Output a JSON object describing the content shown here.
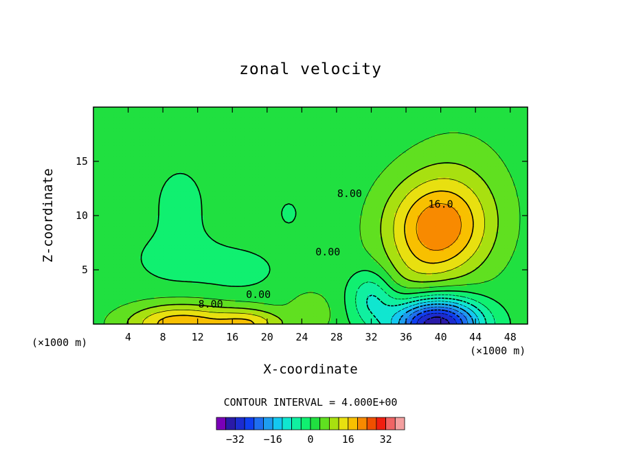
{
  "chart_data": {
    "type": "heatmap",
    "title": "zonal velocity",
    "xlabel": "X-coordinate",
    "ylabel": "Z-coordinate",
    "x_unit_label": "(×1000 m)",
    "x_unit_label_right": "(×1000 m)",
    "xlim": [
      0,
      50
    ],
    "ylim": [
      0,
      20
    ],
    "x_ticks": [
      4,
      8,
      12,
      16,
      20,
      24,
      28,
      32,
      36,
      40,
      44,
      48
    ],
    "y_ticks": [
      5,
      10,
      15
    ],
    "contour_interval_label": "CONTOUR INTERVAL = 4.000E+00",
    "contour_labels": [
      {
        "text": "16.0",
        "x": 40,
        "y": 11
      },
      {
        "text": "8.00",
        "x": 29.5,
        "y": 12
      },
      {
        "text": "0.00",
        "x": 27,
        "y": 6.6
      },
      {
        "text": "0.00",
        "x": 19,
        "y": 2.7
      },
      {
        "text": "8.00",
        "x": 13.5,
        "y": 1.8
      }
    ],
    "colorbar": {
      "levels": [
        -36,
        -32,
        -28,
        -24,
        -20,
        -16,
        -12,
        -8,
        -4,
        0,
        4,
        8,
        12,
        16,
        20,
        24,
        28,
        32,
        36
      ],
      "colors": [
        "#7a00b8",
        "#2a1aa8",
        "#1c2cd0",
        "#0f3ff0",
        "#1f6ff0",
        "#1e9df0",
        "#14c8f0",
        "#10e6d0",
        "#10f0a0",
        "#10f070",
        "#20e040",
        "#60e020",
        "#a8e010",
        "#e8e010",
        "#f8c000",
        "#f88a00",
        "#f05000",
        "#f01e10",
        "#f06464",
        "#f4a0a0"
      ],
      "tick_labels": [
        "-32",
        "-16",
        "0",
        "16",
        "32"
      ],
      "tick_values": [
        -32,
        -16,
        0,
        16,
        32
      ]
    },
    "features": [
      {
        "amp": 19,
        "cx": 39.5,
        "cy": 8.8,
        "sx": 5.8,
        "sy": 4.5
      },
      {
        "amp": 4,
        "cx": 42,
        "cy": 12,
        "sx": 6,
        "sy": 6
      },
      {
        "amp": 3,
        "cx": 37,
        "cy": 4,
        "sx": 4,
        "sy": 3
      },
      {
        "amp": -38,
        "cx": 39.5,
        "cy": 0,
        "sx": 5,
        "sy": 2.4
      },
      {
        "amp": -10,
        "cx": 32,
        "cy": 2.5,
        "sx": 2.5,
        "sy": 2.5
      },
      {
        "amp": -3.8,
        "cx": 10,
        "cy": 11,
        "sx": 3,
        "sy": 3.6
      },
      {
        "amp": -3.8,
        "cx": 10,
        "cy": 6,
        "sx": 5.5,
        "sy": 2.5
      },
      {
        "amp": -3.8,
        "cx": 17,
        "cy": 5,
        "sx": 4,
        "sy": 1.8
      },
      {
        "amp": -3.2,
        "cx": 22.5,
        "cy": 10.2,
        "sx": 1.2,
        "sy": 1.3
      },
      {
        "amp": 17,
        "cx": 10,
        "cy": 0,
        "sx": 6,
        "sy": 1.8
      },
      {
        "amp": 12,
        "cx": 18,
        "cy": 0,
        "sx": 4,
        "sy": 1.4
      },
      {
        "amp": 5,
        "cx": 25,
        "cy": 1,
        "sx": 2.5,
        "sy": 2
      }
    ]
  }
}
